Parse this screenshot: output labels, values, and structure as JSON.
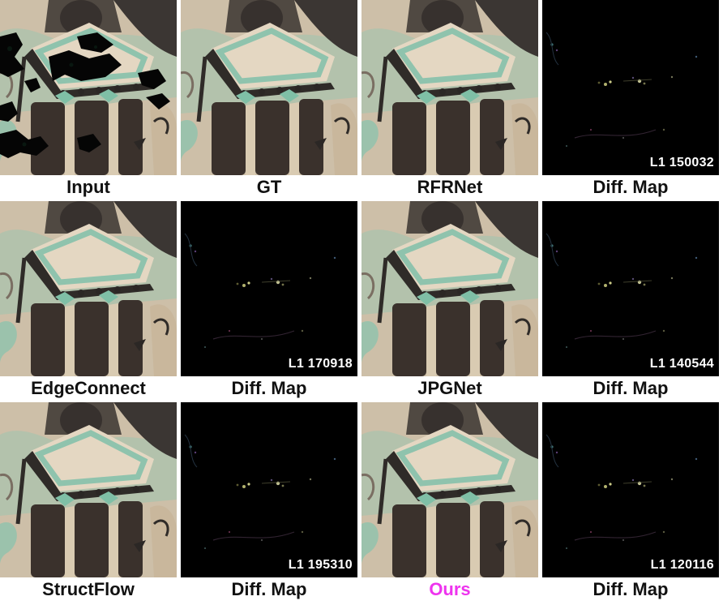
{
  "figure": {
    "panels": [
      {
        "caption": "Input",
        "kind": "mural",
        "masked": true,
        "highlight": false,
        "l1": ""
      },
      {
        "caption": "GT",
        "kind": "mural",
        "masked": false,
        "highlight": false,
        "l1": ""
      },
      {
        "caption": "RFRNet",
        "kind": "mural",
        "masked": false,
        "highlight": false,
        "l1": ""
      },
      {
        "caption": "Diff. Map",
        "kind": "diff",
        "masked": false,
        "highlight": false,
        "l1": "L1 150032"
      },
      {
        "caption": "EdgeConnect",
        "kind": "mural",
        "masked": false,
        "highlight": false,
        "l1": ""
      },
      {
        "caption": "Diff. Map",
        "kind": "diff",
        "masked": false,
        "highlight": false,
        "l1": "L1 170918"
      },
      {
        "caption": "JPGNet",
        "kind": "mural",
        "masked": false,
        "highlight": false,
        "l1": ""
      },
      {
        "caption": "Diff. Map",
        "kind": "diff",
        "masked": false,
        "highlight": false,
        "l1": "L1 140544"
      },
      {
        "caption": "StructFlow",
        "kind": "mural",
        "masked": false,
        "highlight": false,
        "l1": ""
      },
      {
        "caption": "Diff. Map",
        "kind": "diff",
        "masked": false,
        "highlight": false,
        "l1": "L1 195310"
      },
      {
        "caption": "Ours",
        "kind": "mural",
        "masked": false,
        "highlight": true,
        "l1": ""
      },
      {
        "caption": "Diff. Map",
        "kind": "diff",
        "masked": false,
        "highlight": false,
        "l1": "L1 120116"
      }
    ],
    "colors": {
      "mural_base": "#cdbfa8",
      "mural_dark": "#2e2a27",
      "mural_teal": "#7fbfa6",
      "diff_bg": "#000000",
      "highlight_caption": "#ee33ee"
    }
  }
}
